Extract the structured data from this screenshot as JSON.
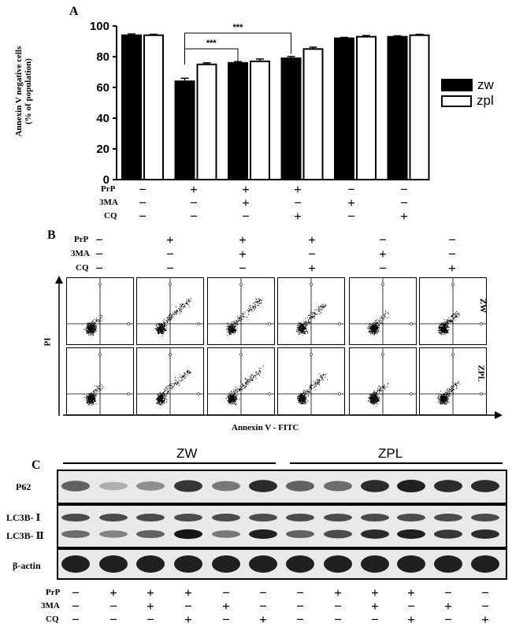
{
  "panels": {
    "a": "A",
    "b": "B",
    "c": "C"
  },
  "treatments": {
    "labels": [
      "PrP",
      "3MA",
      "CQ"
    ],
    "groups_panel_a": [
      [
        "−",
        "+",
        "+",
        "+",
        "−",
        "−"
      ],
      [
        "−",
        "−",
        "+",
        "−",
        "+",
        "−"
      ],
      [
        "−",
        "−",
        "−",
        "+",
        "−",
        "+"
      ]
    ],
    "groups_panel_c": [
      [
        "−",
        "+",
        "+",
        "+",
        "−",
        "−",
        "−",
        "+",
        "+",
        "+",
        "−",
        "−"
      ],
      [
        "−",
        "−",
        "+",
        "−",
        "+",
        "−",
        "−",
        "−",
        "+",
        "−",
        "+",
        "−"
      ],
      [
        "−",
        "−",
        "−",
        "+",
        "−",
        "+",
        "−",
        "−",
        "−",
        "+",
        "−",
        "+"
      ]
    ]
  },
  "chart_data": {
    "type": "bar",
    "ylabel_line1": "Annexin V negative cells",
    "ylabel_line2": "(% of population)",
    "ylim": [
      0,
      100
    ],
    "yticks": [
      "0",
      "20",
      "40",
      "60",
      "80",
      "100"
    ],
    "series": [
      {
        "name": "zw",
        "color": "#000000",
        "values": [
          94,
          64,
          76,
          79,
          92,
          93
        ]
      },
      {
        "name": "zpl",
        "color": "#ffffff",
        "values": [
          94,
          75,
          77,
          85,
          93,
          94
        ]
      }
    ],
    "errors": [
      [
        0.8,
        2.0,
        0.8,
        1.2,
        0.6,
        0.6
      ],
      [
        0.6,
        1.0,
        1.5,
        1.2,
        0.8,
        0.6
      ]
    ],
    "significance": [
      {
        "from_group": 1,
        "to_group": 2,
        "label": "***"
      },
      {
        "from_group": 1,
        "to_group": 3,
        "label": "***"
      }
    ],
    "legend": "right"
  },
  "flow": {
    "x_axis": "Annexin V - FITC",
    "y_axis": "PI",
    "row_labels": [
      "ZW",
      "ZPL"
    ]
  },
  "blot": {
    "group_labels": [
      "ZW",
      "ZPL"
    ],
    "rows": [
      "P62",
      "LC3B- Ⅰ",
      "LC3B- Ⅱ",
      "β-actin"
    ]
  }
}
